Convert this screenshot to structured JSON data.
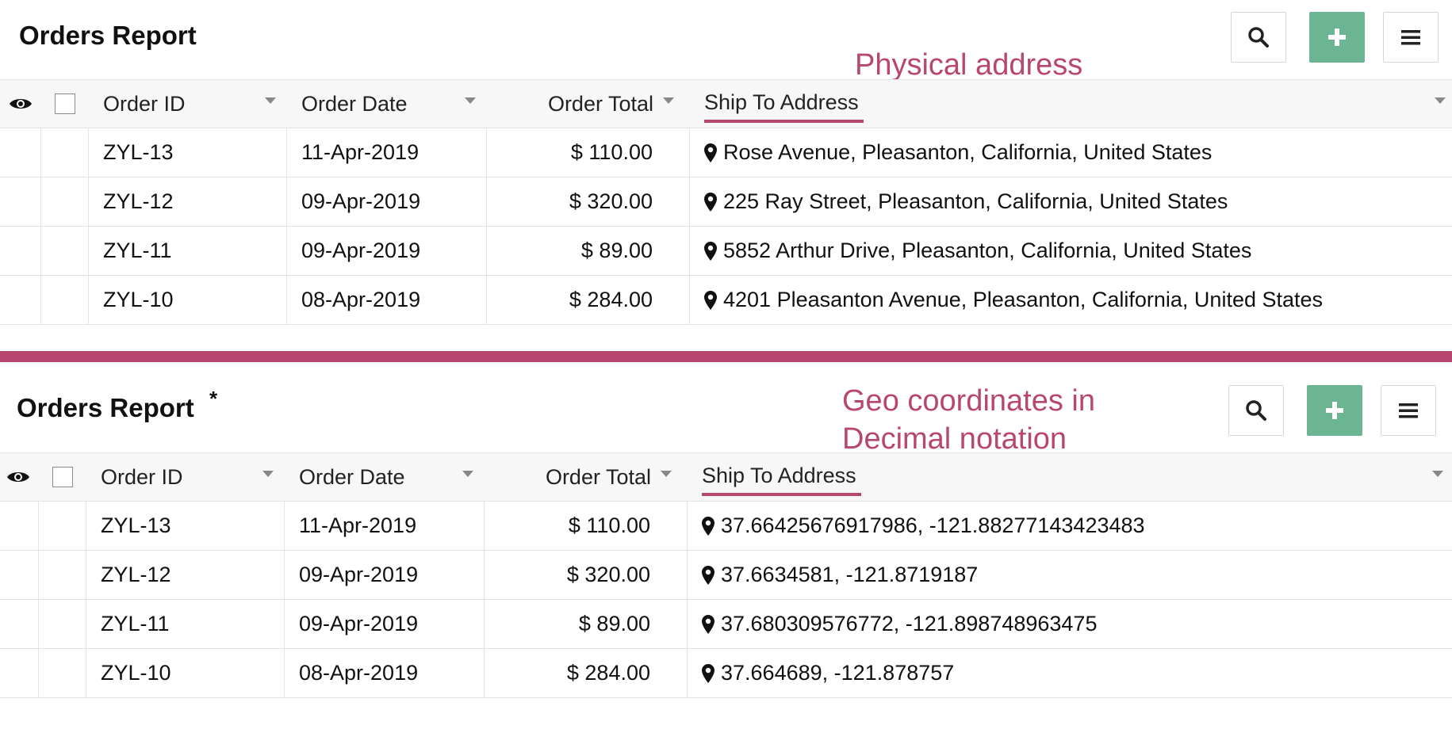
{
  "top": {
    "title": "Orders Report",
    "annotation": "Physical address",
    "columns": {
      "order_id": "Order ID",
      "order_date": "Order Date",
      "order_total": "Order Total",
      "ship_to": "Ship To Address"
    },
    "rows": [
      {
        "id": "ZYL-13",
        "date": "11-Apr-2019",
        "total": "$ 110.00",
        "address": "Rose Avenue, Pleasanton, California, United States"
      },
      {
        "id": "ZYL-12",
        "date": "09-Apr-2019",
        "total": "$ 320.00",
        "address": "225 Ray Street, Pleasanton, California, United States"
      },
      {
        "id": "ZYL-11",
        "date": "09-Apr-2019",
        "total": "$ 89.00",
        "address": "5852 Arthur Drive, Pleasanton, California, United States"
      },
      {
        "id": "ZYL-10",
        "date": "08-Apr-2019",
        "total": "$ 284.00",
        "address": "4201 Pleasanton Avenue, Pleasanton, California, United States"
      }
    ]
  },
  "bottom": {
    "title": "Orders Report",
    "asterisk": "*",
    "annotation_line1": "Geo coordinates in",
    "annotation_line2": "Decimal notation",
    "columns": {
      "order_id": "Order ID",
      "order_date": "Order Date",
      "order_total": "Order Total",
      "ship_to": "Ship To Address"
    },
    "rows": [
      {
        "id": "ZYL-13",
        "date": "11-Apr-2019",
        "total": "$ 110.00",
        "address": "37.66425676917986, -121.88277143423483"
      },
      {
        "id": "ZYL-12",
        "date": "09-Apr-2019",
        "total": "$ 320.00",
        "address": "37.6634581, -121.8719187"
      },
      {
        "id": "ZYL-11",
        "date": "09-Apr-2019",
        "total": "$ 89.00",
        "address": "37.680309576772, -121.898748963475"
      },
      {
        "id": "ZYL-10",
        "date": "08-Apr-2019",
        "total": "$ 284.00",
        "address": "37.664689, -121.878757"
      }
    ]
  },
  "icons": {
    "visibility": "eye-icon",
    "search": "search-icon",
    "add": "plus-icon",
    "menu": "hamburger-menu-icon",
    "location": "map-pin-icon"
  },
  "colors": {
    "accent": "#b8476f",
    "add_button": "#6bb593"
  }
}
